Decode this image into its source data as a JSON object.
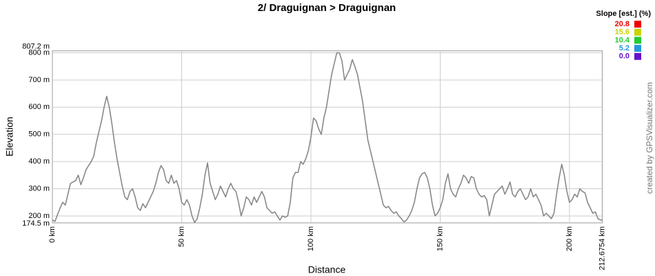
{
  "chart_data": {
    "type": "line",
    "title": "2/ Draguignan > Draguignan",
    "x_label": "Distance",
    "y_label": "Elevation",
    "credit": "created by GPSVisualizer.com",
    "legend": {
      "title": "Slope [est.] (%)",
      "items": [
        {
          "value": 20.8,
          "color": "#ee0000"
        },
        {
          "value": 15.6,
          "color": "#c8d400"
        },
        {
          "value": 10.4,
          "color": "#22cc33"
        },
        {
          "value": 5.2,
          "color": "#2299dd"
        },
        {
          "value": 0,
          "label": "0.0",
          "color": "#6611cc"
        }
      ]
    },
    "xlim": [
      0,
      212.6754
    ],
    "ylim": [
      174.5,
      807.2
    ],
    "xticks": [
      {
        "value": 0,
        "label": "0 km"
      },
      {
        "value": 50,
        "label": "50 km"
      },
      {
        "value": 100,
        "label": "100 km"
      },
      {
        "value": 150,
        "label": "150 km"
      },
      {
        "value": 200,
        "label": "200 km"
      },
      {
        "value": 212.6754,
        "label": "212.6754 km"
      }
    ],
    "yticks": [
      {
        "value": 174.5,
        "label": "174.5 m"
      },
      {
        "value": 200,
        "label": "200 m"
      },
      {
        "value": 300,
        "label": "300 m"
      },
      {
        "value": 400,
        "label": "400 m"
      },
      {
        "value": 500,
        "label": "500 m"
      },
      {
        "value": 600,
        "label": "600 m"
      },
      {
        "value": 700,
        "label": "700 m"
      },
      {
        "value": 800,
        "label": "800 m"
      },
      {
        "value": 807.2,
        "label": "807.2 m"
      }
    ],
    "grid": true,
    "series": [
      {
        "name": "Elevation",
        "color": "#888888",
        "x": [
          0,
          1,
          3,
          4,
          5,
          6,
          7,
          9,
          10,
          11,
          12,
          13,
          15,
          16,
          17,
          18,
          19,
          20,
          21,
          22,
          23,
          24,
          25,
          26,
          27,
          28,
          29,
          30,
          31,
          32,
          33,
          34,
          35,
          36,
          37,
          38,
          39,
          40,
          41,
          42,
          43,
          44,
          45,
          46,
          47,
          48,
          49,
          50,
          51,
          52,
          53,
          54,
          55,
          56,
          57,
          58,
          59,
          60,
          61,
          62,
          63,
          64,
          65,
          66,
          67,
          68,
          69,
          70,
          71,
          72,
          73,
          74,
          75,
          76,
          77,
          78,
          79,
          80,
          81,
          82,
          83,
          84,
          85,
          86,
          87,
          88,
          89,
          90,
          91,
          92,
          93,
          94,
          95,
          96,
          97,
          98,
          99,
          100,
          101,
          102,
          103,
          104,
          105,
          106,
          107,
          108,
          109,
          110,
          111,
          112,
          113,
          114,
          115,
          116,
          117,
          118,
          119,
          120,
          121,
          122,
          123,
          124,
          125,
          126,
          127,
          128,
          129,
          130,
          131,
          132,
          133,
          134,
          135,
          136,
          137,
          138,
          139,
          140,
          141,
          142,
          143,
          144,
          145,
          146,
          147,
          148,
          149,
          150,
          151,
          152,
          153,
          154,
          155,
          156,
          157,
          158,
          159,
          160,
          161,
          162,
          163,
          164,
          165,
          166,
          167,
          168,
          169,
          170,
          171,
          172,
          173,
          174,
          175,
          176,
          177,
          178,
          179,
          180,
          181,
          182,
          183,
          184,
          185,
          186,
          187,
          188,
          189,
          190,
          191,
          192,
          193,
          194,
          195,
          196,
          197,
          198,
          199,
          200,
          201,
          202,
          203,
          204,
          205,
          206,
          207,
          208,
          209,
          210,
          211,
          212,
          212.6754
        ],
        "values": [
          185,
          180,
          230,
          250,
          240,
          280,
          320,
          330,
          350,
          315,
          340,
          370,
          400,
          420,
          470,
          510,
          550,
          600,
          640,
          600,
          540,
          470,
          410,
          360,
          310,
          270,
          260,
          290,
          300,
          270,
          230,
          220,
          245,
          230,
          250,
          270,
          290,
          320,
          360,
          385,
          370,
          330,
          320,
          350,
          320,
          330,
          300,
          250,
          240,
          260,
          240,
          200,
          176,
          190,
          230,
          280,
          350,
          395,
          320,
          290,
          260,
          280,
          310,
          290,
          270,
          300,
          320,
          300,
          290,
          250,
          200,
          230,
          270,
          260,
          240,
          270,
          250,
          270,
          290,
          270,
          230,
          220,
          210,
          215,
          200,
          185,
          200,
          195,
          200,
          250,
          340,
          360,
          360,
          400,
          390,
          410,
          440,
          490,
          560,
          550,
          520,
          500,
          560,
          600,
          660,
          720,
          760,
          800,
          800,
          770,
          700,
          720,
          740,
          775,
          750,
          720,
          670,
          620,
          550,
          480,
          440,
          400,
          360,
          320,
          280,
          240,
          230,
          235,
          220,
          210,
          215,
          200,
          190,
          178,
          185,
          200,
          220,
          250,
          300,
          340,
          355,
          360,
          340,
          300,
          240,
          200,
          210,
          230,
          260,
          320,
          355,
          300,
          280,
          270,
          300,
          320,
          350,
          340,
          320,
          345,
          340,
          300,
          280,
          270,
          275,
          260,
          200,
          240,
          280,
          290,
          300,
          310,
          280,
          300,
          325,
          280,
          270,
          290,
          300,
          280,
          260,
          270,
          300,
          270,
          280,
          260,
          240,
          200,
          210,
          200,
          190,
          210,
          280,
          340,
          390,
          350,
          290,
          250,
          260,
          280,
          270,
          300,
          290,
          285,
          250,
          230,
          210,
          215,
          190,
          185,
          185
        ]
      }
    ]
  }
}
